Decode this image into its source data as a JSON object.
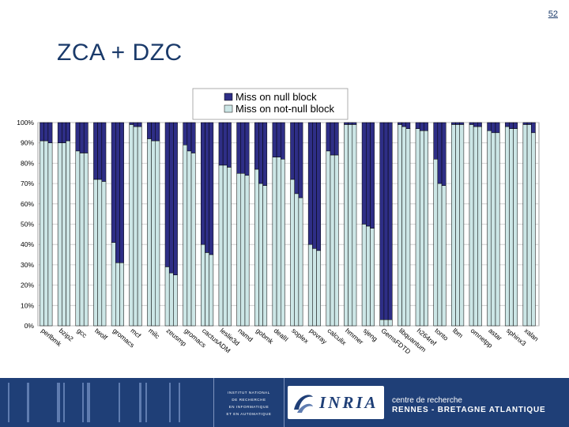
{
  "page_number": "52",
  "slide_title": "ZCA + DZC",
  "colors": {
    "null_block": "#2e2e86",
    "not_null_block": "#cce6e6",
    "bar_stroke": "#000000",
    "footer_band": "#1f3f77",
    "title": "#1a3a6a"
  },
  "chart_data": {
    "type": "bar",
    "stacked": true,
    "percent_axis": true,
    "ylim": [
      0,
      100
    ],
    "yticks": [
      "0%",
      "10%",
      "20%",
      "30%",
      "40%",
      "50%",
      "60%",
      "70%",
      "80%",
      "90%",
      "100%"
    ],
    "legend_position": "top",
    "series": [
      {
        "name": "Miss on null block",
        "color_key": "null_block"
      },
      {
        "name": "Miss on not-null block",
        "color_key": "not_null_block"
      }
    ],
    "bars_per_group": 3,
    "groups": [
      {
        "label": "perlbmk",
        "not_null": [
          91,
          91,
          90
        ]
      },
      {
        "label": "bzip2",
        "not_null": [
          90,
          90,
          91
        ]
      },
      {
        "label": "gcc",
        "not_null": [
          86,
          85,
          85
        ]
      },
      {
        "label": "twolf",
        "not_null": [
          72,
          72,
          71
        ]
      },
      {
        "label": "gromacs",
        "not_null": [
          41,
          31,
          31
        ]
      },
      {
        "label": "mcf",
        "not_null": [
          99,
          98,
          98
        ]
      },
      {
        "label": "milc",
        "not_null": [
          92,
          91,
          91
        ]
      },
      {
        "label": "zeusmp",
        "not_null": [
          29,
          26,
          25
        ]
      },
      {
        "label": "gromacs",
        "not_null": [
          89,
          86,
          85
        ]
      },
      {
        "label": "cactusADM",
        "not_null": [
          40,
          36,
          35
        ]
      },
      {
        "label": "leslie3d",
        "not_null": [
          79,
          79,
          78
        ]
      },
      {
        "label": "namd",
        "not_null": [
          75,
          75,
          74
        ]
      },
      {
        "label": "gobmk",
        "not_null": [
          77,
          70,
          69
        ]
      },
      {
        "label": "dealII",
        "not_null": [
          83,
          83,
          82
        ]
      },
      {
        "label": "soplex",
        "not_null": [
          72,
          65,
          63
        ]
      },
      {
        "label": "povray",
        "not_null": [
          40,
          38,
          37
        ]
      },
      {
        "label": "calculix",
        "not_null": [
          86,
          84,
          84
        ]
      },
      {
        "label": "hmmer",
        "not_null": [
          99,
          99,
          99
        ]
      },
      {
        "label": "sjeng",
        "not_null": [
          50,
          49,
          48
        ]
      },
      {
        "label": "GemsFDTD",
        "not_null": [
          3,
          3,
          3
        ]
      },
      {
        "label": "libquantum",
        "not_null": [
          99,
          98,
          97
        ]
      },
      {
        "label": "h264ref",
        "not_null": [
          97,
          96,
          96
        ]
      },
      {
        "label": "tonto",
        "not_null": [
          82,
          70,
          69
        ]
      },
      {
        "label": "lbm",
        "not_null": [
          99,
          99,
          99
        ]
      },
      {
        "label": "omnetpp",
        "not_null": [
          99,
          98,
          98
        ]
      },
      {
        "label": "astar",
        "not_null": [
          96,
          95,
          95
        ]
      },
      {
        "label": "sphinx3",
        "not_null": [
          98,
          97,
          97
        ]
      },
      {
        "label": "xalan",
        "not_null": [
          99,
          99,
          95
        ]
      }
    ]
  },
  "footer": {
    "institute_lines": [
      "INSTITUT NATIONAL",
      "DE RECHERCHE",
      "EN INFORMATIQUE",
      "ET EN AUTOMATIQUE"
    ],
    "logo_text": "INRIA",
    "center_line1": "centre de recherche",
    "center_line2": "RENNES - BRETAGNE ATLANTIQUE"
  }
}
